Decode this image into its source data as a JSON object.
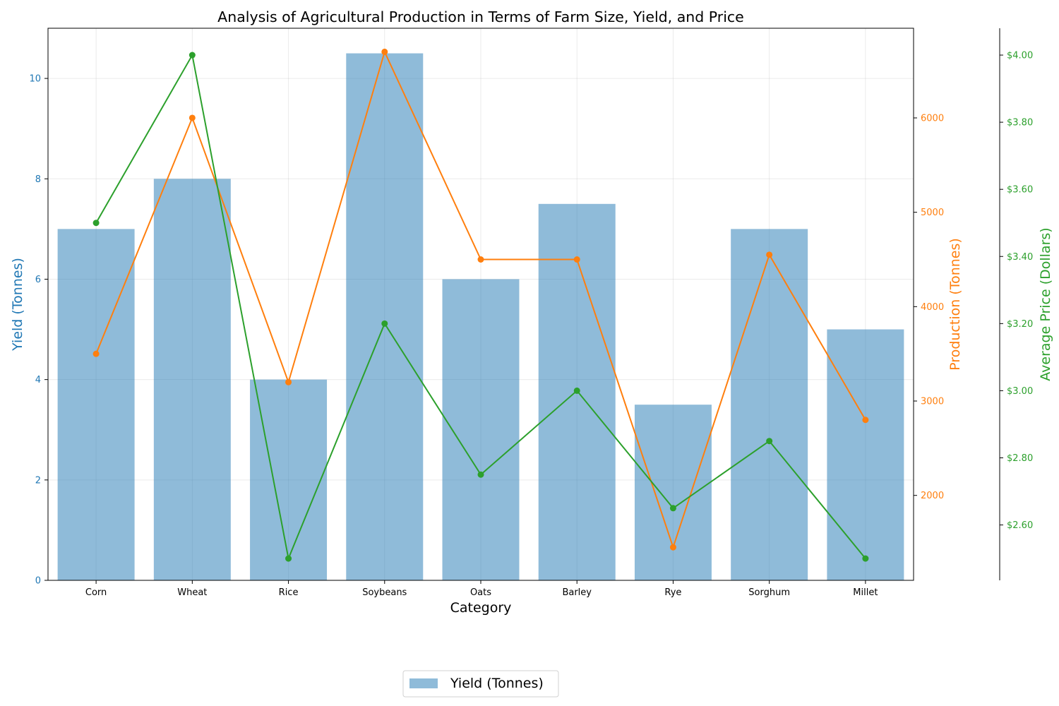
{
  "chart_data": {
    "type": "bar",
    "title": "Analysis of Agricultural Production in Terms of Farm Size, Yield, and Price",
    "xlabel": "Category",
    "categories": [
      "Corn",
      "Wheat",
      "Rice",
      "Soybeans",
      "Oats",
      "Barley",
      "Rye",
      "Sorghum",
      "Millet"
    ],
    "grid": true,
    "legend_position": "bottom-center",
    "axes": {
      "yield": {
        "label": "Yield (Tonnes)",
        "range": [
          0,
          11
        ],
        "ticks": [
          0,
          2,
          4,
          6,
          8,
          10
        ],
        "tick_labels": [
          "0",
          "2",
          "4",
          "6",
          "8",
          "10"
        ],
        "color": "#1f77b4"
      },
      "production": {
        "label": "Production (Tonnes)",
        "range": [
          1100,
          6950
        ],
        "ticks": [
          2000,
          3000,
          4000,
          5000,
          6000
        ],
        "tick_labels": [
          "2000",
          "3000",
          "4000",
          "5000",
          "6000"
        ],
        "color": "#ff7f0e"
      },
      "price": {
        "label": "Average Price (Dollars)",
        "range": [
          2.435,
          4.08
        ],
        "ticks": [
          2.6,
          2.8,
          3.0,
          3.2,
          3.4,
          3.6,
          3.8,
          4.0
        ],
        "tick_labels": [
          "$2.60",
          "$2.80",
          "$3.00",
          "$3.20",
          "$3.40",
          "$3.60",
          "$3.80",
          "$4.00"
        ],
        "color": "#2ca02c"
      }
    },
    "series": [
      {
        "name": "Yield (Tonnes)",
        "type": "bar",
        "axis": "yield",
        "color": "#1f77b4",
        "values": [
          7,
          8,
          4,
          10.5,
          6,
          7.5,
          3.5,
          7,
          5
        ]
      },
      {
        "type": "line",
        "axis": "production",
        "color": "#ff7f0e",
        "values": [
          3500,
          6000,
          3200,
          6700,
          4500,
          4500,
          1450,
          4550,
          2800
        ]
      },
      {
        "type": "line",
        "axis": "price",
        "color": "#2ca02c",
        "values": [
          3.5,
          4.0,
          2.5,
          3.2,
          2.75,
          3.0,
          2.65,
          2.85,
          2.5
        ]
      }
    ],
    "legend": [
      "Yield (Tonnes)"
    ]
  }
}
